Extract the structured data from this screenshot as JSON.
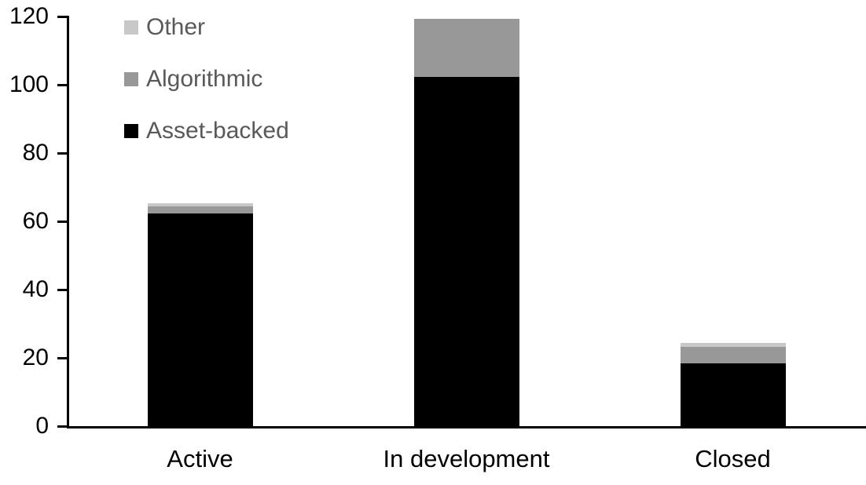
{
  "chart_data": {
    "type": "bar",
    "stacked": true,
    "title": "",
    "xlabel": "",
    "ylabel": "",
    "categories": [
      "Active",
      "In development",
      "Closed"
    ],
    "series": [
      {
        "name": "Other",
        "color": "#c8c8c8",
        "values": [
          1,
          0,
          1
        ]
      },
      {
        "name": "Algorithmic",
        "color": "#989898",
        "values": [
          2,
          17,
          5
        ]
      },
      {
        "name": "Asset-backed",
        "color": "#000000",
        "values": [
          63,
          103,
          19
        ]
      }
    ],
    "totals": [
      66,
      120,
      25
    ],
    "y_axis": {
      "min": 0,
      "max": 120,
      "tick_interval": 20,
      "ticks": [
        "0",
        "20",
        "40",
        "60",
        "80",
        "100",
        "120"
      ]
    },
    "grid": false,
    "legend": {
      "position": "top-left",
      "text_color": "#595959",
      "order_top_to_bottom": [
        "Other",
        "Algorithmic",
        "Asset-backed"
      ]
    },
    "colors": {
      "axis": "#000000",
      "background": "#ffffff"
    }
  }
}
